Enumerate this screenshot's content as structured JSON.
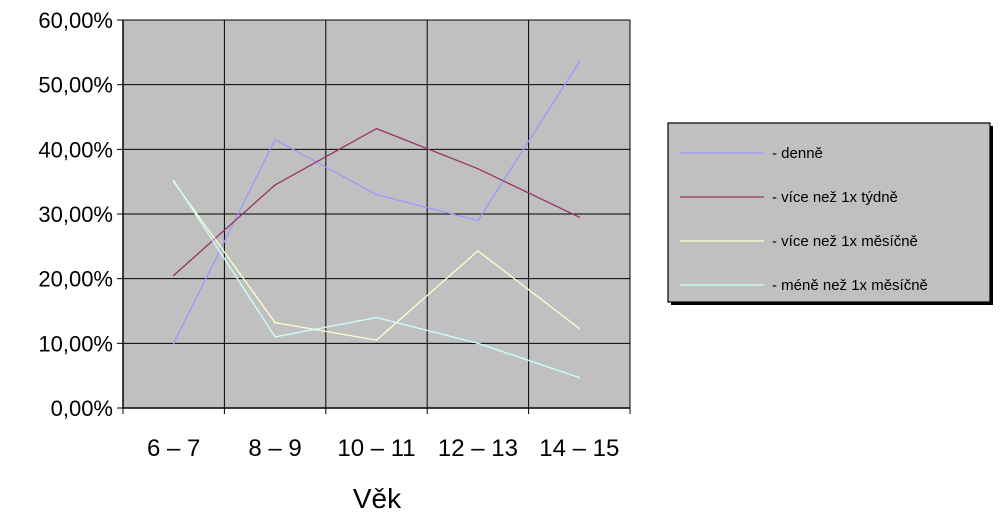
{
  "chart_data": {
    "type": "line",
    "title": "",
    "xlabel": "Věk",
    "ylabel": "",
    "categories": [
      "6 – 7",
      "8 – 9",
      "10 – 11",
      "12 – 13",
      "14 – 15"
    ],
    "y_ticks": [
      "0,00%",
      "10,00%",
      "20,00%",
      "30,00%",
      "40,00%",
      "50,00%",
      "60,00%"
    ],
    "ylim": [
      0,
      60
    ],
    "grid": true,
    "legend_position": "right",
    "plot_background": "#c0c0c0",
    "series": [
      {
        "name": "- denně",
        "color": "#9999ff",
        "values": [
          10.0,
          41.5,
          33.0,
          29.0,
          53.5
        ]
      },
      {
        "name": "- více než 1x týdně",
        "color": "#993366",
        "values": [
          20.5,
          34.5,
          43.2,
          37.0,
          29.5
        ]
      },
      {
        "name": "- více než 1x měsíčně",
        "color": "#ffffcc",
        "values": [
          35.0,
          13.2,
          10.5,
          24.3,
          12.3
        ]
      },
      {
        "name": "- méně než 1x měsíčně",
        "color": "#ccffff",
        "values": [
          35.2,
          11.0,
          14.0,
          10.0,
          4.7
        ]
      }
    ]
  }
}
